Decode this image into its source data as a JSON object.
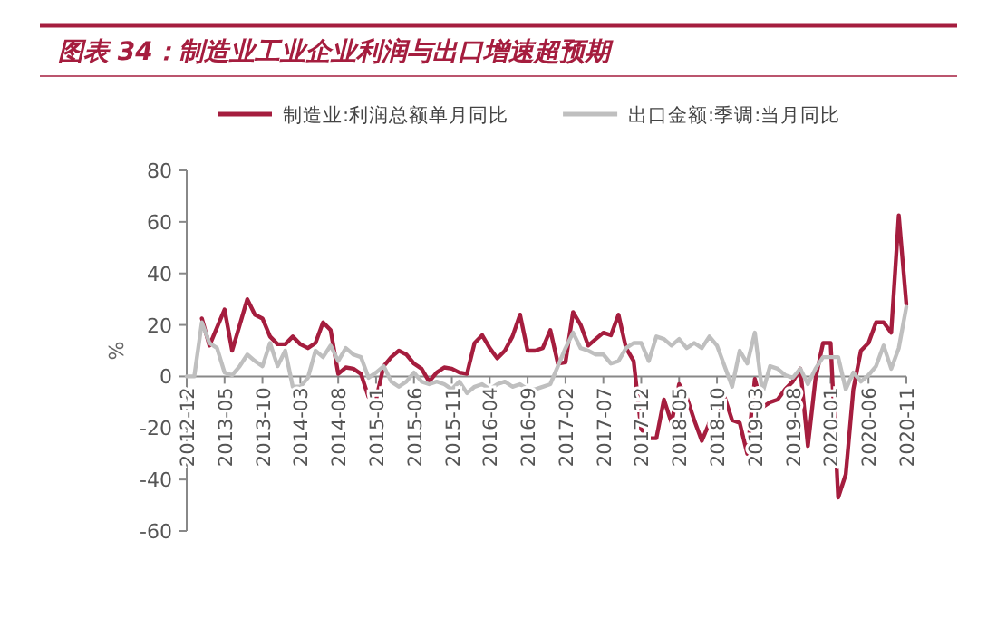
{
  "chart_data": {
    "type": "line",
    "title": "图表 34：制造业工业企业利润与出口增速超预期",
    "ylabel": "%",
    "x": [
      "2012-12",
      "2013-01",
      "2013-02",
      "2013-03",
      "2013-04",
      "2013-05",
      "2013-06",
      "2013-07",
      "2013-08",
      "2013-09",
      "2013-10",
      "2013-11",
      "2013-12",
      "2014-01",
      "2014-02",
      "2014-03",
      "2014-04",
      "2014-05",
      "2014-06",
      "2014-07",
      "2014-08",
      "2014-09",
      "2014-10",
      "2014-11",
      "2014-12",
      "2015-01",
      "2015-02",
      "2015-03",
      "2015-04",
      "2015-05",
      "2015-06",
      "2015-07",
      "2015-08",
      "2015-09",
      "2015-10",
      "2015-11",
      "2015-12",
      "2016-01",
      "2016-02",
      "2016-03",
      "2016-04",
      "2016-05",
      "2016-06",
      "2016-07",
      "2016-08",
      "2016-09",
      "2016-10",
      "2016-11",
      "2016-12",
      "2017-01",
      "2017-02",
      "2017-03",
      "2017-04",
      "2017-05",
      "2017-06",
      "2017-07",
      "2017-08",
      "2017-09",
      "2017-10",
      "2017-11",
      "2017-12",
      "2018-01",
      "2018-02",
      "2018-03",
      "2018-04",
      "2018-05",
      "2018-06",
      "2018-07",
      "2018-08",
      "2018-09",
      "2018-10",
      "2018-11",
      "2018-12",
      "2019-01",
      "2019-02",
      "2019-03",
      "2019-04",
      "2019-05",
      "2019-06",
      "2019-07",
      "2019-08",
      "2019-09",
      "2019-10",
      "2019-11",
      "2019-12",
      "2020-01",
      "2020-02",
      "2020-03",
      "2020-04",
      "2020-05",
      "2020-06",
      "2020-07",
      "2020-08",
      "2020-09",
      "2020-10",
      "2020-11"
    ],
    "series": [
      {
        "name": "制造业:利润总额单月同比",
        "color": "#a51d3e",
        "values": [
          null,
          null,
          22.5,
          12,
          19,
          26,
          10,
          20,
          30,
          24,
          22.5,
          15.5,
          12.5,
          12.5,
          15.5,
          12.5,
          11,
          13,
          21,
          18,
          1,
          3.5,
          3,
          1,
          -8,
          -9,
          4,
          7.5,
          10,
          8.5,
          5,
          3,
          -2,
          1.5,
          3.5,
          3,
          1.5,
          1,
          13,
          16,
          11,
          7,
          10,
          15.5,
          24,
          10,
          10,
          11,
          18,
          5,
          5.5,
          25,
          20,
          12,
          14.5,
          17,
          16,
          24,
          11,
          6,
          -20.5,
          -24,
          -24,
          -9,
          -18,
          -3,
          -8,
          -17,
          -25,
          -18,
          -18,
          -8,
          -17,
          -18,
          -30,
          -1,
          -12,
          -10,
          -9,
          -5,
          -2,
          3,
          -27,
          -1,
          13,
          13,
          -47,
          -38,
          -5,
          10,
          13,
          21,
          21,
          17,
          62.5,
          28
        ]
      },
      {
        "name": "出口金额:季调:当月同比",
        "color": "#bfbfbf",
        "values": [
          0,
          0,
          21,
          13,
          11,
          1.5,
          0.5,
          4,
          8.5,
          6,
          4,
          13,
          4,
          10,
          -4,
          -4,
          -0.5,
          10,
          7.5,
          12,
          6,
          11,
          8.5,
          7.5,
          -0.5,
          1.5,
          4,
          -2,
          -4,
          -2,
          1.5,
          -2,
          -3,
          -2,
          -3,
          -5,
          -2,
          -6.5,
          -4,
          -3,
          -5,
          -3,
          -2,
          -4,
          -3,
          -5,
          -5,
          -4,
          -3,
          4,
          11,
          17,
          11,
          10,
          8.5,
          8.5,
          5,
          6,
          11,
          13,
          13,
          6,
          15.5,
          14.5,
          12,
          14.5,
          11,
          13,
          11,
          15.5,
          12,
          4,
          -4,
          10,
          5,
          17,
          -6.5,
          4,
          3,
          0.5,
          -0.5,
          3,
          -3,
          3,
          7.5,
          7.5,
          7.5,
          -5,
          1.5,
          -2,
          0.5,
          4,
          12,
          3,
          11,
          27
        ]
      }
    ],
    "xlim": [
      "2012-12",
      "2020-11"
    ],
    "xticks": [
      "2012-12",
      "2013-05",
      "2013-10",
      "2014-03",
      "2014-08",
      "2015-01",
      "2015-06",
      "2015-11",
      "2016-04",
      "2016-09",
      "2017-02",
      "2017-07",
      "2017-12",
      "2018-05",
      "2018-10",
      "2019-03",
      "2019-08",
      "2020-01",
      "2020-06",
      "2020-11"
    ],
    "ylim": [
      -60,
      80
    ],
    "yticks": [
      -60,
      -40,
      -20,
      0,
      20,
      40,
      60,
      80
    ],
    "legend": "top",
    "grid": false,
    "marker": "none",
    "line_style": "solid"
  }
}
